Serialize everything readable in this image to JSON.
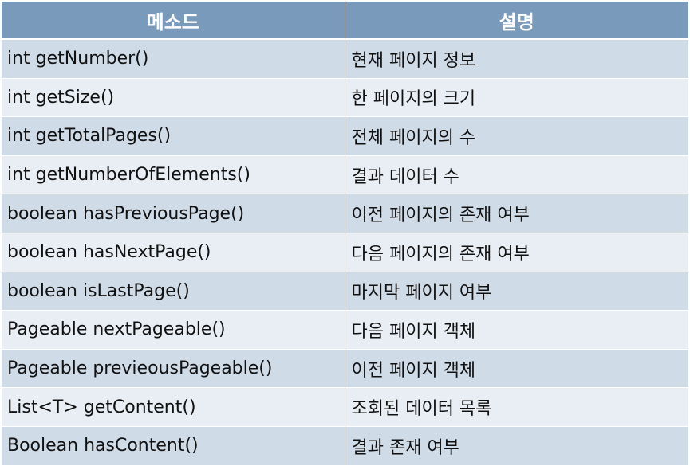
{
  "header": {
    "method": "메소드",
    "description": "설명"
  },
  "rows": [
    {
      "method": "int getNumber()",
      "description": "현재 페이지 정보"
    },
    {
      "method": "int getSize()",
      "description": "한 페이지의 크기"
    },
    {
      "method": "int getTotalPages()",
      "description": "전체 페이지의 수"
    },
    {
      "method": "int getNumberOfElements()",
      "description": "결과 데이터 수"
    },
    {
      "method": "boolean hasPreviousPage()",
      "description": "이전 페이지의 존재 여부"
    },
    {
      "method": "boolean hasNextPage()",
      "description": "다음 페이지의 존재 여부"
    },
    {
      "method": "boolean isLastPage()",
      "description": "마지막 페이지 여부"
    },
    {
      "method": "Pageable nextPageable()",
      "description": "다음 페이지 객체"
    },
    {
      "method": "Pageable previeousPageable()",
      "description": "이전 페이지 객체"
    },
    {
      "method": "List<T> getContent()",
      "description": "조회된 데이터 목록"
    },
    {
      "method": "Boolean hasContent()",
      "description": "결과 존재 여부"
    }
  ],
  "colors": {
    "header_bg": "#7a9abb",
    "row_odd": "#d0dbe8",
    "row_even": "#e9eef5"
  }
}
